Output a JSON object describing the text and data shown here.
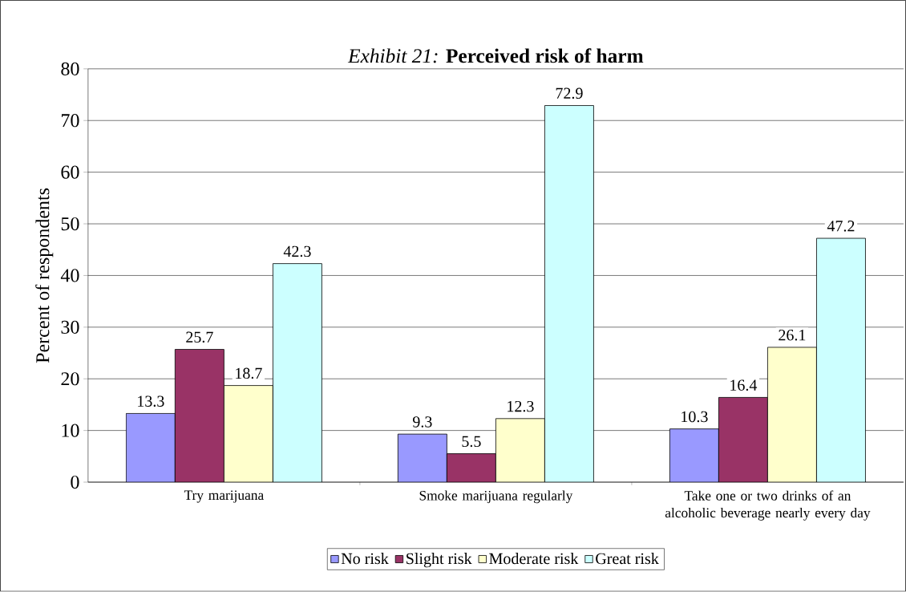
{
  "chart_data": {
    "type": "bar",
    "title": "*Exhibit 21:* **Perceived risk of harm**",
    "ylabel": "Percent of respondents",
    "categories": [
      "Try marijuana",
      "Smoke marijuana regularly",
      "Take one or two drinks of an alcoholic beverage nearly every day"
    ],
    "series": [
      {
        "name": "No risk",
        "color": "#9999ff",
        "values": [
          13.3,
          9.3,
          10.3
        ]
      },
      {
        "name": "Slight risk",
        "color": "#993366",
        "values": [
          25.7,
          5.5,
          16.4
        ]
      },
      {
        "name": "Moderate risk",
        "color": "#ffffcc",
        "values": [
          18.7,
          12.3,
          26.1
        ]
      },
      {
        "name": "Great risk",
        "color": "#ccffff",
        "values": [
          42.3,
          72.9,
          47.2
        ]
      }
    ],
    "ylim": [
      0,
      80
    ],
    "yticks": [
      0,
      10,
      20,
      30,
      40,
      50,
      60,
      70,
      80
    ],
    "grid": "y",
    "legend": "bottom",
    "data_labels": true
  }
}
